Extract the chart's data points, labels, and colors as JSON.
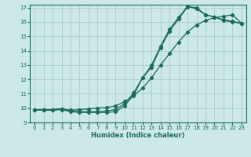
{
  "xlabel": "Humidex (Indice chaleur)",
  "xlim": [
    -0.5,
    23.5
  ],
  "ylim": [
    9,
    17.2
  ],
  "xticks": [
    0,
    1,
    2,
    3,
    4,
    5,
    6,
    7,
    8,
    9,
    10,
    11,
    12,
    13,
    14,
    15,
    16,
    17,
    18,
    19,
    20,
    21,
    22,
    23
  ],
  "yticks": [
    9,
    10,
    11,
    12,
    13,
    14,
    15,
    16,
    17
  ],
  "bg_color": "#cce8e8",
  "grid_color": "#aacccc",
  "line_color": "#1a6b5a",
  "curve1_x": [
    0,
    1,
    2,
    3,
    4,
    5,
    6,
    7,
    8,
    9,
    10,
    11,
    12,
    13,
    14,
    15,
    16,
    17,
    18,
    19,
    20,
    21,
    22,
    23
  ],
  "curve1_y": [
    9.9,
    9.85,
    9.85,
    9.9,
    9.75,
    9.7,
    9.7,
    9.7,
    9.7,
    9.75,
    10.15,
    10.9,
    12.1,
    12.85,
    14.2,
    15.35,
    16.2,
    17.05,
    17.0,
    16.5,
    16.35,
    16.1,
    16.0,
    15.9
  ],
  "curve2_x": [
    0,
    1,
    2,
    3,
    4,
    5,
    6,
    7,
    8,
    9,
    10,
    11,
    12,
    13,
    14,
    15,
    16,
    17,
    18,
    19,
    20,
    21,
    22,
    23
  ],
  "curve2_y": [
    9.9,
    9.85,
    9.9,
    9.95,
    9.8,
    9.75,
    9.75,
    9.75,
    9.8,
    9.9,
    10.3,
    11.05,
    12.1,
    13.0,
    14.3,
    15.5,
    16.3,
    17.1,
    16.9,
    16.5,
    16.35,
    16.15,
    16.05,
    15.9
  ],
  "curve3_x": [
    0,
    1,
    2,
    3,
    4,
    5,
    6,
    7,
    8,
    9,
    10,
    11,
    12,
    13,
    14,
    15,
    16,
    17,
    18,
    19,
    20,
    21,
    22,
    23
  ],
  "curve3_y": [
    9.9,
    9.9,
    9.9,
    9.95,
    9.85,
    9.9,
    9.95,
    10.0,
    10.05,
    10.15,
    10.45,
    10.85,
    11.4,
    12.1,
    13.0,
    13.8,
    14.6,
    15.3,
    15.8,
    16.1,
    16.3,
    16.4,
    16.5,
    15.9
  ]
}
